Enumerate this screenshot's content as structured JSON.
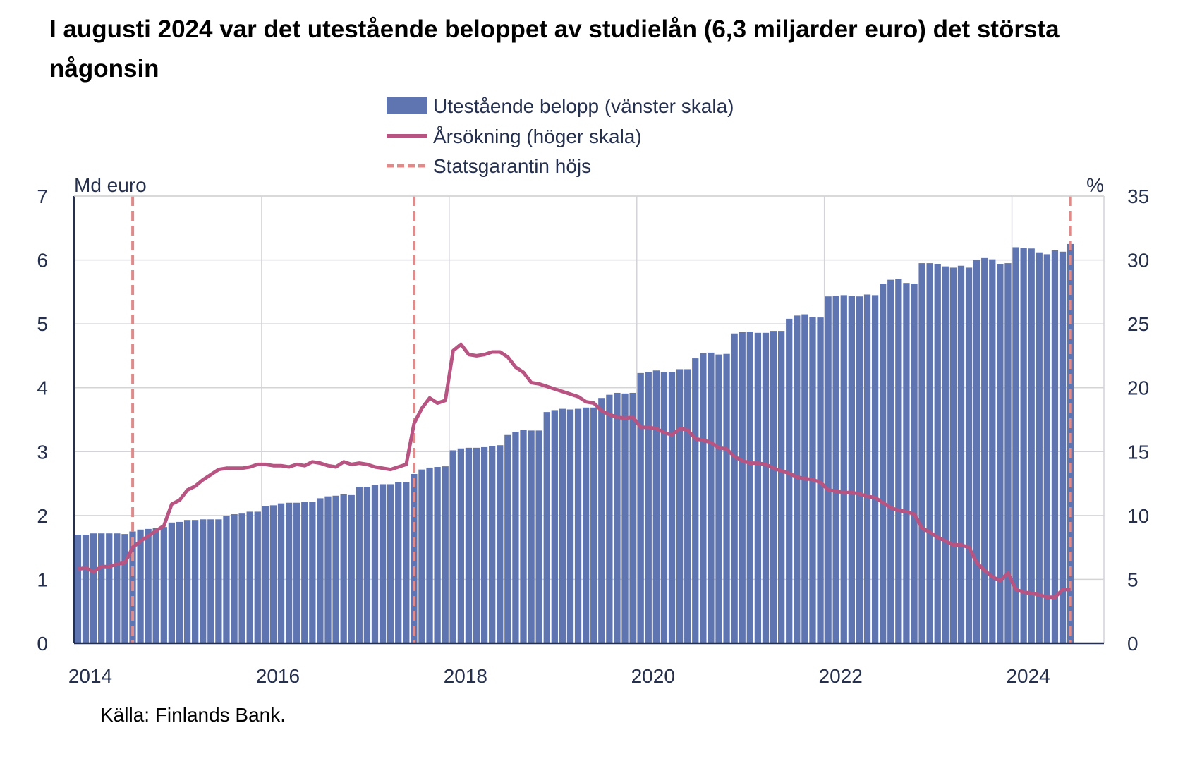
{
  "chart_data": {
    "type": "bar+line",
    "title": "I augusti 2024 var det utestående beloppet av studielån (6,3 miljarder euro) det största någonsin",
    "source": "Källa: Finlands Bank.",
    "left_axis": {
      "label": "Md euro",
      "range": [
        0,
        7
      ],
      "ticks": [
        "0",
        "1",
        "2",
        "3",
        "4",
        "5",
        "6",
        "7"
      ]
    },
    "right_axis": {
      "label": "%",
      "range": [
        0,
        35
      ],
      "ticks": [
        "0",
        "5",
        "10",
        "15",
        "20",
        "25",
        "30",
        "35"
      ]
    },
    "x_ticks": [
      "2014",
      "2016",
      "2018",
      "2020",
      "2022",
      "2024"
    ],
    "x_start": "2014-01",
    "x_end": "2024-08",
    "frequency": "monthly",
    "grid": true,
    "legend_position": "top-center",
    "legend": [
      {
        "label": "Utestående belopp (vänster skala)",
        "kind": "bar",
        "color": "#5f75b1"
      },
      {
        "label": "Årsökning (höger skala)",
        "kind": "line",
        "color": "#b85482"
      },
      {
        "label": "Statsgarantin höjs",
        "kind": "dashed",
        "color": "#e08a8a"
      }
    ],
    "series": [
      {
        "name": "Utestående belopp (vänster skala)",
        "axis": "left",
        "values": [
          1.7,
          1.7,
          1.72,
          1.72,
          1.72,
          1.72,
          1.71,
          1.75,
          1.78,
          1.79,
          1.8,
          1.82,
          1.89,
          1.9,
          1.93,
          1.93,
          1.94,
          1.94,
          1.94,
          1.99,
          2.02,
          2.03,
          2.06,
          2.06,
          2.15,
          2.16,
          2.19,
          2.2,
          2.2,
          2.21,
          2.21,
          2.27,
          2.3,
          2.31,
          2.33,
          2.32,
          2.45,
          2.45,
          2.48,
          2.49,
          2.49,
          2.52,
          2.52,
          2.65,
          2.72,
          2.75,
          2.76,
          2.77,
          3.02,
          3.05,
          3.06,
          3.06,
          3.07,
          3.09,
          3.1,
          3.26,
          3.31,
          3.34,
          3.33,
          3.33,
          3.62,
          3.65,
          3.67,
          3.66,
          3.67,
          3.69,
          3.69,
          3.84,
          3.89,
          3.92,
          3.91,
          3.92,
          4.23,
          4.25,
          4.27,
          4.25,
          4.25,
          4.29,
          4.29,
          4.46,
          4.54,
          4.55,
          4.52,
          4.53,
          4.85,
          4.87,
          4.88,
          4.86,
          4.86,
          4.89,
          4.89,
          5.08,
          5.13,
          5.15,
          5.11,
          5.1,
          5.43,
          5.44,
          5.45,
          5.44,
          5.43,
          5.46,
          5.45,
          5.63,
          5.69,
          5.7,
          5.64,
          5.63,
          5.95,
          5.95,
          5.94,
          5.9,
          5.88,
          5.91,
          5.88,
          6.0,
          6.03,
          6.01,
          5.94,
          5.95,
          6.2,
          6.19,
          6.18,
          6.12,
          6.09,
          6.15,
          6.13,
          6.25
        ]
      },
      {
        "name": "Årsökning (höger skala)",
        "axis": "right",
        "values": [
          5.8,
          5.9,
          5.6,
          6.0,
          6.0,
          6.2,
          6.3,
          7.5,
          8.0,
          8.4,
          8.8,
          9.2,
          10.9,
          11.2,
          12.0,
          12.3,
          12.8,
          13.2,
          13.6,
          13.7,
          13.7,
          13.7,
          13.8,
          14.0,
          14.0,
          13.9,
          13.9,
          13.8,
          14.0,
          13.9,
          14.2,
          14.1,
          13.9,
          13.8,
          14.2,
          14.0,
          14.1,
          14.0,
          13.8,
          13.7,
          13.6,
          13.8,
          14.0,
          17.2,
          18.4,
          19.2,
          18.8,
          19.0,
          22.9,
          23.4,
          22.6,
          22.5,
          22.6,
          22.8,
          22.8,
          22.4,
          21.6,
          21.2,
          20.4,
          20.3,
          20.1,
          19.9,
          19.7,
          19.5,
          19.3,
          18.9,
          18.8,
          18.2,
          17.9,
          17.7,
          17.6,
          17.7,
          16.9,
          16.9,
          16.8,
          16.5,
          16.3,
          16.8,
          16.7,
          16.0,
          15.9,
          15.7,
          15.3,
          15.2,
          14.6,
          14.3,
          14.1,
          14.1,
          14.0,
          13.7,
          13.5,
          13.3,
          13.0,
          12.9,
          12.8,
          12.6,
          12.0,
          11.9,
          11.8,
          11.8,
          11.7,
          11.5,
          11.4,
          11.0,
          10.6,
          10.4,
          10.3,
          10.1,
          9.0,
          8.7,
          8.3,
          8.0,
          7.7,
          7.7,
          7.5,
          6.3,
          5.7,
          5.2,
          4.9,
          5.5,
          4.2,
          4.0,
          3.9,
          3.8,
          3.6,
          3.6,
          4.2,
          4.2
        ]
      }
    ],
    "vertical_markers": {
      "label": "Statsgarantin höjs",
      "months": [
        "2014-08",
        "2017-08",
        "2024-08"
      ],
      "month_index": [
        7,
        43,
        127
      ]
    }
  }
}
